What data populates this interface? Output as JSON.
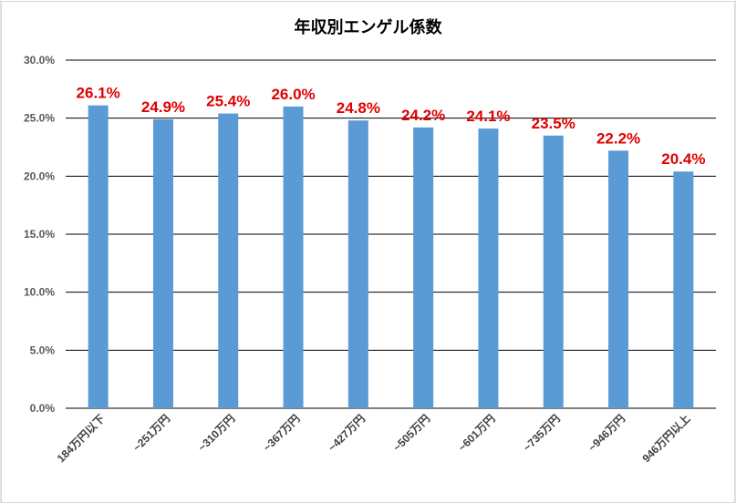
{
  "chart_data": {
    "type": "bar",
    "title": "年収別エンゲル係数",
    "xlabel": "",
    "ylabel": "",
    "categories": [
      "184万円以下",
      "~251万円",
      "~310万円",
      "~367万円",
      "~427万円",
      "~505万円",
      "~601万円",
      "~735万円",
      "~946万円",
      "946万円以上"
    ],
    "values": [
      26.1,
      24.9,
      25.4,
      26.0,
      24.8,
      24.2,
      24.1,
      23.5,
      22.2,
      20.4
    ],
    "data_labels": [
      "26.1%",
      "24.9%",
      "25.4%",
      "26.0%",
      "24.8%",
      "24.2%",
      "24.1%",
      "23.5%",
      "22.2%",
      "20.4%"
    ],
    "ylim": [
      0,
      30
    ],
    "yticks": [
      0,
      5,
      10,
      15,
      20,
      25,
      30
    ],
    "ytick_labels": [
      "0.0%",
      "5.0%",
      "10.0%",
      "15.0%",
      "20.0%",
      "25.0%",
      "30.0%"
    ],
    "grid": true,
    "legend": "none",
    "colors": {
      "bar": "#5b9bd5",
      "data_label": "#e00000",
      "gridline": "#000000"
    }
  }
}
